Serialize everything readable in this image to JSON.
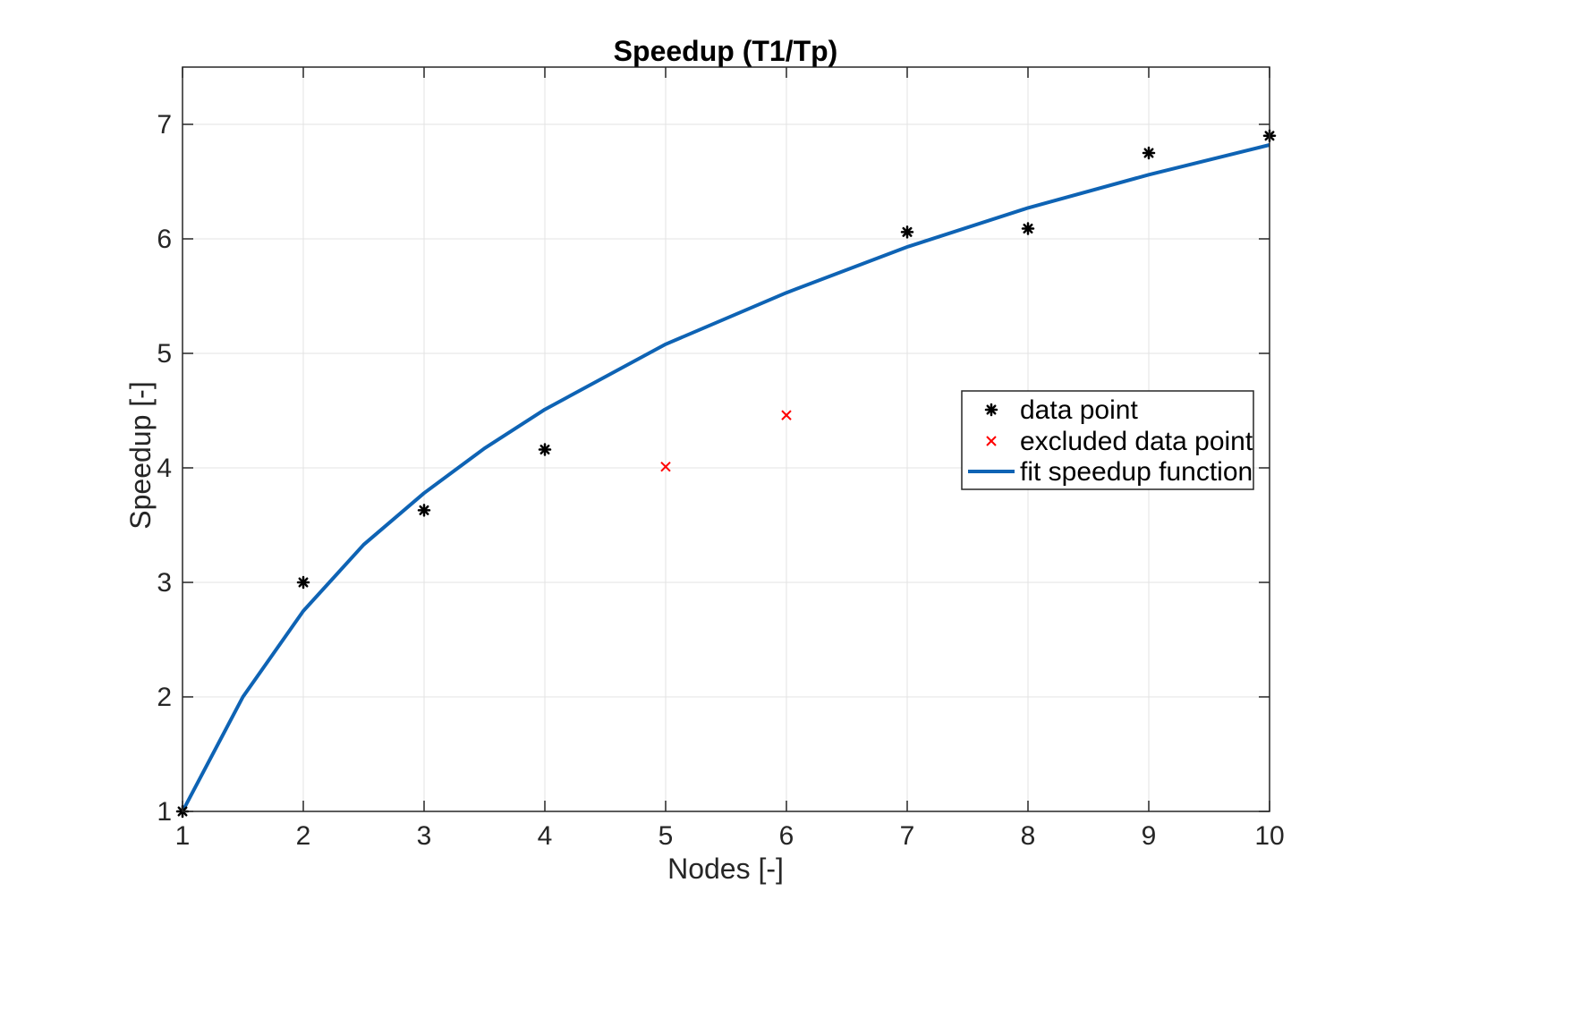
{
  "chart_data": {
    "type": "scatter",
    "title": "Speedup (T1/Tp)",
    "xlabel": "Nodes [-]",
    "ylabel": "Speedup [-]",
    "xlim": [
      1,
      10
    ],
    "ylim": [
      1,
      7.5
    ],
    "x_ticks": [
      "1",
      "2",
      "3",
      "4",
      "5",
      "6",
      "7",
      "8",
      "9",
      "10"
    ],
    "y_ticks": [
      "1",
      "2",
      "3",
      "4",
      "5",
      "6",
      "7"
    ],
    "grid": true,
    "legend_position": "right",
    "series": [
      {
        "name": "data point",
        "kind": "scatter",
        "marker": "asterisk",
        "color": "#000000",
        "x": [
          1,
          2,
          3,
          4,
          7,
          8,
          9,
          10
        ],
        "y": [
          1.0,
          3.0,
          3.63,
          4.16,
          6.06,
          6.09,
          6.75,
          6.9
        ]
      },
      {
        "name": "excluded data point",
        "kind": "scatter",
        "marker": "x",
        "color": "#ff0000",
        "x": [
          5,
          6
        ],
        "y": [
          4.01,
          4.46
        ]
      },
      {
        "name": "fit speedup function",
        "kind": "line",
        "color": "#0e63b4",
        "x": [
          1,
          1.5,
          2,
          2.5,
          3,
          3.5,
          4,
          5,
          6,
          7,
          8,
          9,
          10
        ],
        "y": [
          1.0,
          2.0,
          2.75,
          3.33,
          3.78,
          4.17,
          4.51,
          5.08,
          5.53,
          5.93,
          6.27,
          6.56,
          6.82
        ]
      }
    ]
  }
}
